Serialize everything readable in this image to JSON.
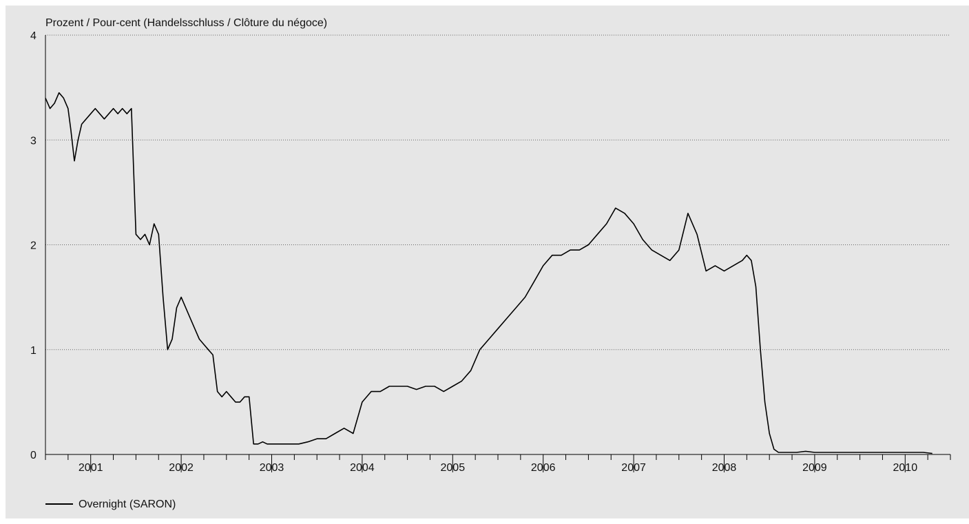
{
  "colors": {
    "background": "#e6e6e6",
    "line": "#000000",
    "grid": "#666666"
  },
  "chart_data": {
    "type": "line",
    "ylabel": "Prozent / Pour-cent (Handelsschluss / Clôture du négoce)",
    "ylim": [
      0,
      4
    ],
    "yticks": [
      "0",
      "1",
      "2",
      "3",
      "4"
    ],
    "xlim": [
      2000.5,
      2010.5
    ],
    "xticks": [
      "2001",
      "2002",
      "2003",
      "2004",
      "2005",
      "2006",
      "2007",
      "2008",
      "2009",
      "2010"
    ],
    "grid": "horizontal dotted",
    "legend_position": "bottom-left",
    "series": [
      {
        "name": "Overnight (SARON)",
        "x": [
          2000.5,
          2000.55,
          2000.6,
          2000.65,
          2000.7,
          2000.75,
          2000.78,
          2000.82,
          2000.86,
          2000.9,
          2000.95,
          2001.0,
          2001.05,
          2001.1,
          2001.15,
          2001.2,
          2001.25,
          2001.3,
          2001.35,
          2001.4,
          2001.45,
          2001.5,
          2001.55,
          2001.6,
          2001.65,
          2001.7,
          2001.75,
          2001.8,
          2001.85,
          2001.9,
          2001.95,
          2002.0,
          2002.05,
          2002.1,
          2002.15,
          2002.2,
          2002.25,
          2002.3,
          2002.35,
          2002.4,
          2002.45,
          2002.5,
          2002.55,
          2002.6,
          2002.65,
          2002.7,
          2002.75,
          2002.8,
          2002.85,
          2002.9,
          2002.95,
          2003.0,
          2003.1,
          2003.2,
          2003.3,
          2003.4,
          2003.5,
          2003.6,
          2003.7,
          2003.8,
          2003.9,
          2004.0,
          2004.1,
          2004.2,
          2004.3,
          2004.4,
          2004.5,
          2004.6,
          2004.7,
          2004.8,
          2004.9,
          2005.0,
          2005.1,
          2005.2,
          2005.3,
          2005.4,
          2005.5,
          2005.6,
          2005.7,
          2005.8,
          2005.9,
          2006.0,
          2006.1,
          2006.2,
          2006.3,
          2006.4,
          2006.5,
          2006.6,
          2006.7,
          2006.8,
          2006.9,
          2007.0,
          2007.1,
          2007.2,
          2007.3,
          2007.4,
          2007.5,
          2007.6,
          2007.7,
          2007.8,
          2007.9,
          2008.0,
          2008.1,
          2008.2,
          2008.25,
          2008.3,
          2008.35,
          2008.4,
          2008.45,
          2008.5,
          2008.55,
          2008.6,
          2008.7,
          2008.8,
          2008.9,
          2009.0,
          2009.2,
          2009.4,
          2009.6,
          2009.8,
          2010.0,
          2010.2,
          2010.3
        ],
        "values": [
          3.4,
          3.3,
          3.35,
          3.45,
          3.4,
          3.3,
          3.1,
          2.8,
          3.0,
          3.15,
          3.2,
          3.25,
          3.3,
          3.25,
          3.2,
          3.25,
          3.3,
          3.25,
          3.3,
          3.25,
          3.3,
          2.1,
          2.05,
          2.1,
          2.0,
          2.2,
          2.1,
          1.5,
          1.0,
          1.1,
          1.4,
          1.5,
          1.4,
          1.3,
          1.2,
          1.1,
          1.05,
          1.0,
          0.95,
          0.6,
          0.55,
          0.6,
          0.55,
          0.5,
          0.5,
          0.55,
          0.55,
          0.1,
          0.1,
          0.12,
          0.1,
          0.1,
          0.1,
          0.1,
          0.1,
          0.12,
          0.15,
          0.15,
          0.2,
          0.25,
          0.2,
          0.5,
          0.6,
          0.6,
          0.65,
          0.65,
          0.65,
          0.62,
          0.65,
          0.65,
          0.6,
          0.65,
          0.7,
          0.8,
          1.0,
          1.1,
          1.2,
          1.3,
          1.4,
          1.5,
          1.65,
          1.8,
          1.9,
          1.9,
          1.95,
          1.95,
          2.0,
          2.1,
          2.2,
          2.35,
          2.3,
          2.2,
          2.05,
          1.95,
          1.9,
          1.85,
          1.95,
          2.3,
          2.1,
          1.75,
          1.8,
          1.75,
          1.8,
          1.85,
          1.9,
          1.85,
          1.6,
          1.0,
          0.5,
          0.2,
          0.05,
          0.02,
          0.02,
          0.02,
          0.03,
          0.02,
          0.02,
          0.02,
          0.02,
          0.02,
          0.02,
          0.02,
          0.01
        ]
      }
    ]
  }
}
